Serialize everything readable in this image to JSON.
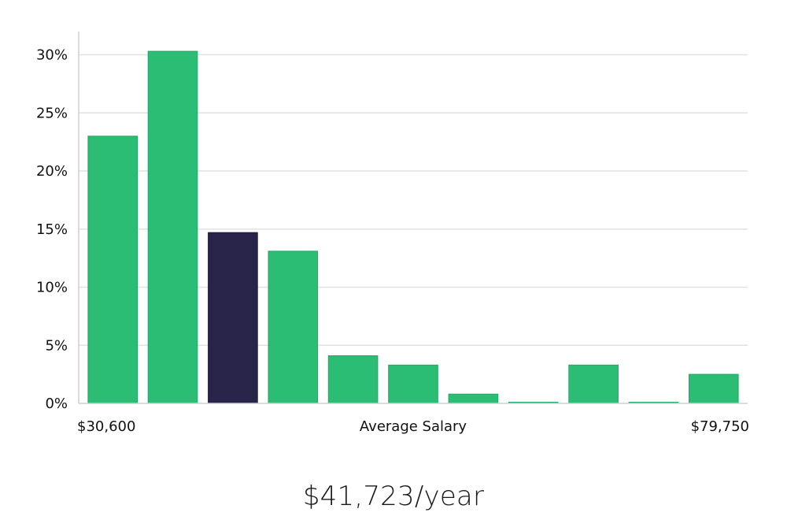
{
  "headline": "$41,723/year",
  "colors": {
    "bar": "#2bbd73",
    "bar_highlight": "#29244a",
    "grid": "#e2e2e2",
    "axis": "#d0d0d0",
    "text": "#111111"
  },
  "chart_data": {
    "type": "bar",
    "title": "",
    "xlabel": "Average Salary",
    "ylabel": "",
    "x_range_labels": [
      "$30,600",
      "$79,750"
    ],
    "values": [
      23.0,
      30.3,
      14.7,
      13.1,
      4.1,
      3.3,
      0.8,
      0.1,
      3.3,
      0.1,
      2.5
    ],
    "highlight_index": 2,
    "ylim": [
      0,
      32
    ],
    "yticks": [
      0,
      5,
      10,
      15,
      20,
      25,
      30
    ],
    "ytick_labels": [
      "0%",
      "5%",
      "10%",
      "15%",
      "20%",
      "25%",
      "30%"
    ],
    "grid": true,
    "legend": "none"
  }
}
